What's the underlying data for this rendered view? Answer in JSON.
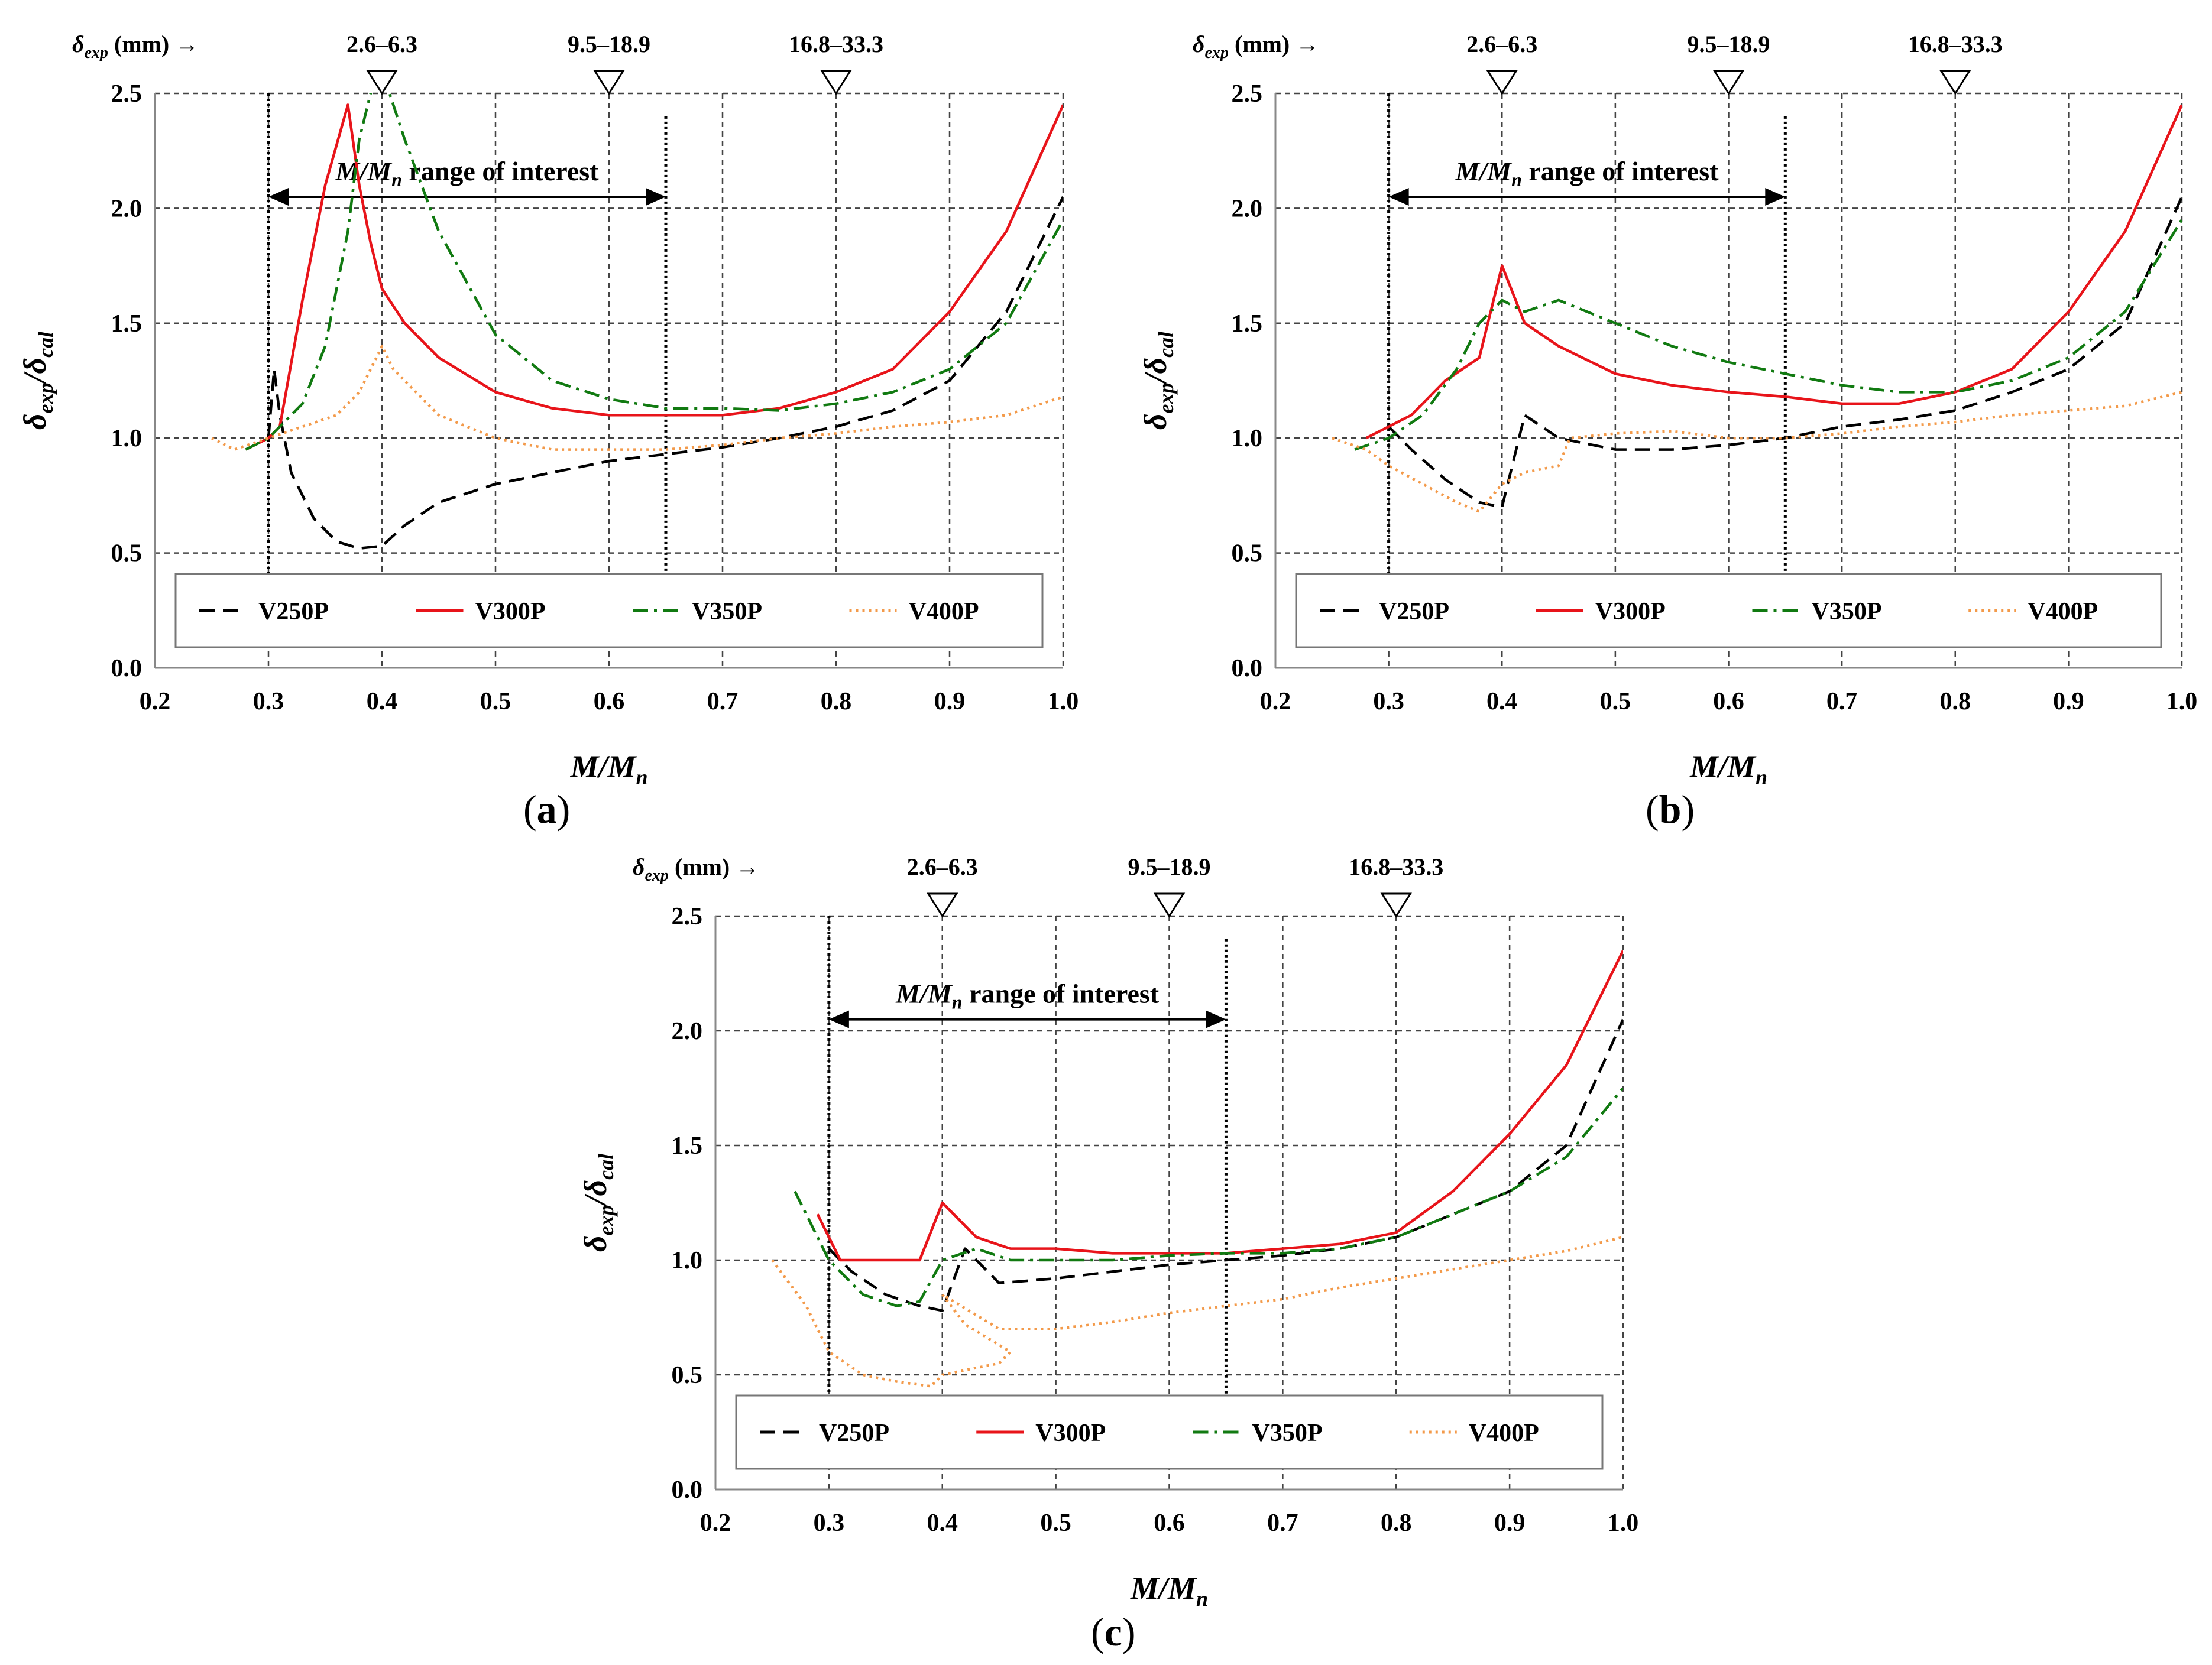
{
  "figure": {
    "x_label_main": "M",
    "x_label_sub": "n",
    "y_label": {
      "num": "δ",
      "num_sub": "exp",
      "den": "δ",
      "den_sub": "cal"
    },
    "top_label": {
      "delta": "δ",
      "delta_sub": "exp",
      "unit": "(mm)",
      "arrow": "→"
    },
    "top_markers": [
      {
        "at": 0.4,
        "label": "2.6–6.3"
      },
      {
        "at": 0.6,
        "label": "9.5–18.9"
      },
      {
        "at": 0.8,
        "label": "16.8–33.3"
      }
    ],
    "range_label": {
      "m": "M",
      "mn": "M",
      "mn_sub": "n",
      "text": " range of interest"
    },
    "legend": [
      {
        "key": "V250P",
        "label": "V250P",
        "color": "#000000",
        "dash": "26,14"
      },
      {
        "key": "V300P",
        "label": "V300P",
        "color": "#e8141a",
        "dash": ""
      },
      {
        "key": "V350P",
        "label": "V350P",
        "color": "#117a11",
        "dash": "26,10,5,10"
      },
      {
        "key": "V400P",
        "label": "V400P",
        "color": "#f39a4a",
        "dash": "4,7"
      }
    ],
    "x_ticks": [
      "0.2",
      "0.3",
      "0.4",
      "0.5",
      "0.6",
      "0.7",
      "0.8",
      "0.9",
      "1.0"
    ],
    "y_ticks": [
      "0.0",
      "0.5",
      "1.0",
      "1.5",
      "2.0",
      "2.5"
    ]
  },
  "chart_data": [
    {
      "panel": "a",
      "caption": "a",
      "type": "line",
      "xlabel": "M/Mn",
      "ylabel": "δexp/δcal",
      "xlim": [
        0.2,
        1.0
      ],
      "ylim": [
        0.0,
        2.5
      ],
      "range_of_interest": [
        0.3,
        0.65
      ],
      "series": [
        {
          "name": "V250P",
          "x": [
            0.3,
            0.305,
            0.31,
            0.32,
            0.34,
            0.36,
            0.38,
            0.4,
            0.42,
            0.45,
            0.5,
            0.55,
            0.6,
            0.65,
            0.7,
            0.75,
            0.8,
            0.85,
            0.9,
            0.95,
            1.0
          ],
          "y": [
            1.0,
            1.3,
            1.1,
            0.85,
            0.65,
            0.55,
            0.52,
            0.53,
            0.62,
            0.72,
            0.8,
            0.85,
            0.9,
            0.93,
            0.96,
            1.0,
            1.05,
            1.12,
            1.25,
            1.55,
            2.05
          ]
        },
        {
          "name": "V300P",
          "x": [
            0.28,
            0.3,
            0.31,
            0.33,
            0.35,
            0.37,
            0.38,
            0.39,
            0.4,
            0.42,
            0.45,
            0.5,
            0.55,
            0.6,
            0.65,
            0.7,
            0.75,
            0.8,
            0.85,
            0.9,
            0.95,
            1.0
          ],
          "y": [
            0.95,
            1.0,
            1.05,
            1.6,
            2.1,
            2.45,
            2.1,
            1.85,
            1.65,
            1.5,
            1.35,
            1.2,
            1.13,
            1.1,
            1.1,
            1.1,
            1.13,
            1.2,
            1.3,
            1.55,
            1.9,
            2.45
          ]
        },
        {
          "name": "V350P",
          "x": [
            0.28,
            0.3,
            0.33,
            0.35,
            0.37,
            0.38,
            0.39,
            0.4,
            0.42,
            0.45,
            0.5,
            0.55,
            0.6,
            0.65,
            0.7,
            0.75,
            0.8,
            0.85,
            0.9,
            0.95,
            1.0
          ],
          "y": [
            0.95,
            1.0,
            1.15,
            1.4,
            1.9,
            2.3,
            2.5,
            2.6,
            2.3,
            1.9,
            1.45,
            1.25,
            1.17,
            1.13,
            1.13,
            1.12,
            1.15,
            1.2,
            1.3,
            1.5,
            1.95
          ]
        },
        {
          "name": "V400P",
          "x": [
            0.25,
            0.27,
            0.3,
            0.33,
            0.36,
            0.38,
            0.4,
            0.41,
            0.42,
            0.45,
            0.5,
            0.55,
            0.6,
            0.65,
            0.7,
            0.75,
            0.8,
            0.85,
            0.9,
            0.95,
            1.0
          ],
          "y": [
            1.0,
            0.95,
            1.0,
            1.05,
            1.1,
            1.2,
            1.4,
            1.3,
            1.25,
            1.1,
            1.0,
            0.95,
            0.95,
            0.95,
            0.97,
            1.0,
            1.02,
            1.05,
            1.07,
            1.1,
            1.18
          ]
        }
      ]
    },
    {
      "panel": "b",
      "caption": "b",
      "type": "line",
      "xlabel": "M/Mn",
      "ylabel": "δexp/δcal",
      "xlim": [
        0.2,
        1.0
      ],
      "ylim": [
        0.0,
        2.5
      ],
      "range_of_interest": [
        0.3,
        0.65
      ],
      "series": [
        {
          "name": "V250P",
          "x": [
            0.3,
            0.32,
            0.35,
            0.38,
            0.4,
            0.42,
            0.45,
            0.5,
            0.55,
            0.6,
            0.65,
            0.7,
            0.75,
            0.8,
            0.85,
            0.9,
            0.95,
            1.0
          ],
          "y": [
            1.05,
            0.95,
            0.82,
            0.72,
            0.7,
            1.1,
            1.0,
            0.95,
            0.95,
            0.97,
            1.0,
            1.05,
            1.08,
            1.12,
            1.2,
            1.3,
            1.5,
            2.05
          ]
        },
        {
          "name": "V300P",
          "x": [
            0.28,
            0.3,
            0.32,
            0.35,
            0.38,
            0.4,
            0.42,
            0.45,
            0.5,
            0.55,
            0.6,
            0.65,
            0.7,
            0.75,
            0.8,
            0.85,
            0.9,
            0.95,
            1.0
          ],
          "y": [
            1.0,
            1.05,
            1.1,
            1.25,
            1.35,
            1.75,
            1.5,
            1.4,
            1.28,
            1.23,
            1.2,
            1.18,
            1.15,
            1.15,
            1.2,
            1.3,
            1.55,
            1.9,
            2.45
          ]
        },
        {
          "name": "V350P",
          "x": [
            0.27,
            0.3,
            0.33,
            0.36,
            0.38,
            0.4,
            0.42,
            0.45,
            0.5,
            0.55,
            0.6,
            0.65,
            0.7,
            0.75,
            0.8,
            0.85,
            0.9,
            0.95,
            1.0
          ],
          "y": [
            0.95,
            1.0,
            1.1,
            1.3,
            1.5,
            1.6,
            1.55,
            1.6,
            1.5,
            1.4,
            1.33,
            1.28,
            1.23,
            1.2,
            1.2,
            1.25,
            1.35,
            1.55,
            1.95
          ]
        },
        {
          "name": "V400P",
          "x": [
            0.25,
            0.28,
            0.3,
            0.33,
            0.36,
            0.38,
            0.4,
            0.42,
            0.45,
            0.46,
            0.5,
            0.55,
            0.6,
            0.65,
            0.7,
            0.75,
            0.8,
            0.85,
            0.9,
            0.95,
            1.0
          ],
          "y": [
            1.0,
            0.95,
            0.88,
            0.8,
            0.72,
            0.68,
            0.8,
            0.85,
            0.88,
            1.0,
            1.02,
            1.03,
            1.0,
            1.0,
            1.02,
            1.05,
            1.07,
            1.1,
            1.12,
            1.14,
            1.2
          ]
        }
      ]
    },
    {
      "panel": "c",
      "caption": "c",
      "type": "line",
      "xlabel": "M/Mn",
      "ylabel": "δexp/δcal",
      "xlim": [
        0.2,
        1.0
      ],
      "ylim": [
        0.0,
        2.5
      ],
      "range_of_interest": [
        0.3,
        0.65
      ],
      "series": [
        {
          "name": "V250P",
          "x": [
            0.3,
            0.32,
            0.35,
            0.38,
            0.4,
            0.42,
            0.45,
            0.5,
            0.55,
            0.6,
            0.65,
            0.7,
            0.75,
            0.8,
            0.85,
            0.9,
            0.95,
            1.0
          ],
          "y": [
            1.05,
            0.95,
            0.85,
            0.8,
            0.78,
            1.05,
            0.9,
            0.92,
            0.95,
            0.98,
            1.0,
            1.02,
            1.05,
            1.1,
            1.2,
            1.3,
            1.5,
            2.05
          ]
        },
        {
          "name": "V300P",
          "x": [
            0.29,
            0.31,
            0.33,
            0.36,
            0.38,
            0.4,
            0.43,
            0.46,
            0.5,
            0.55,
            0.6,
            0.65,
            0.7,
            0.75,
            0.8,
            0.85,
            0.9,
            0.95,
            1.0
          ],
          "y": [
            1.2,
            1.0,
            1.0,
            1.0,
            1.0,
            1.25,
            1.1,
            1.05,
            1.05,
            1.03,
            1.03,
            1.03,
            1.05,
            1.07,
            1.12,
            1.3,
            1.55,
            1.85,
            2.35
          ]
        },
        {
          "name": "V350P",
          "x": [
            0.27,
            0.3,
            0.33,
            0.36,
            0.38,
            0.4,
            0.43,
            0.46,
            0.5,
            0.55,
            0.6,
            0.65,
            0.7,
            0.75,
            0.8,
            0.85,
            0.9,
            0.95,
            1.0
          ],
          "y": [
            1.3,
            1.0,
            0.85,
            0.8,
            0.82,
            1.0,
            1.05,
            1.0,
            1.0,
            1.0,
            1.02,
            1.03,
            1.03,
            1.05,
            1.1,
            1.2,
            1.3,
            1.45,
            1.75
          ]
        },
        {
          "name": "V400P",
          "x": [
            0.25,
            0.28,
            0.3,
            0.33,
            0.36,
            0.39,
            0.4,
            0.42,
            0.45,
            0.46,
            0.42,
            0.4,
            0.45,
            0.5,
            0.55,
            0.6,
            0.65,
            0.7,
            0.75,
            0.8,
            0.85,
            0.9,
            0.95,
            1.0
          ],
          "y": [
            1.0,
            0.8,
            0.6,
            0.5,
            0.47,
            0.45,
            0.5,
            0.52,
            0.55,
            0.6,
            0.72,
            0.85,
            0.7,
            0.7,
            0.73,
            0.77,
            0.8,
            0.83,
            0.88,
            0.92,
            0.96,
            1.0,
            1.04,
            1.1
          ]
        }
      ]
    }
  ]
}
